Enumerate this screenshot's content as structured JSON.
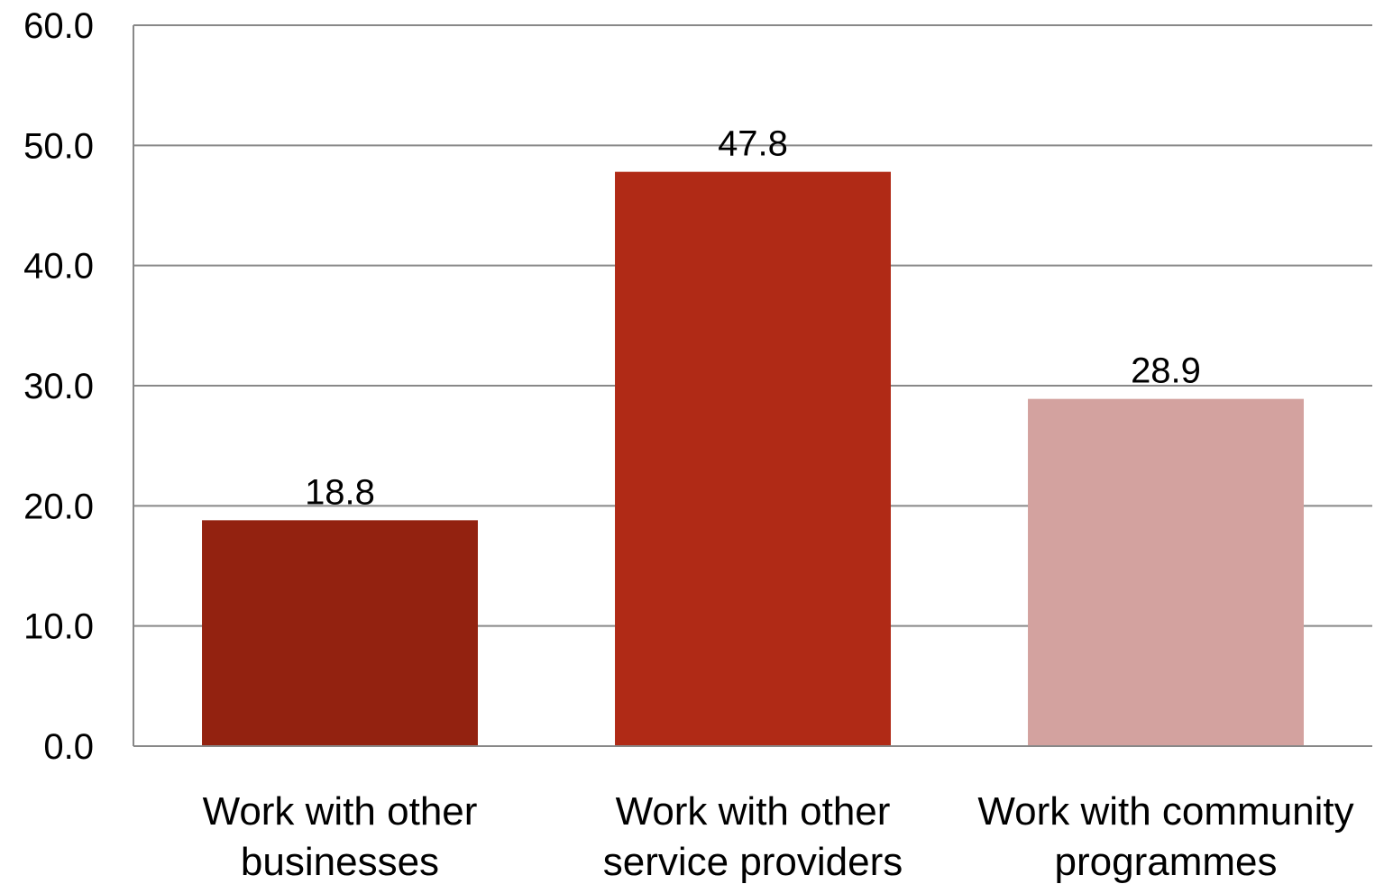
{
  "chart_data": {
    "type": "bar",
    "title": "",
    "xlabel": "",
    "ylabel": "",
    "categories": [
      [
        "Work with other",
        "businesses"
      ],
      [
        "Work with other",
        "service providers"
      ],
      [
        "Work with community",
        "programmes"
      ]
    ],
    "values": [
      18.8,
      47.8,
      28.9
    ],
    "value_labels": [
      "18.8",
      "47.8",
      "28.9"
    ],
    "colors": [
      "#932210",
      "#b02a16",
      "#d3a29f"
    ],
    "ylim": [
      0,
      60
    ],
    "yticks": [
      0,
      10,
      20,
      30,
      40,
      50,
      60
    ],
    "ytick_labels": [
      "0.0",
      "10.0",
      "20.0",
      "30.0",
      "40.0",
      "50.0",
      "60.0"
    ],
    "grid": true,
    "legend": "none",
    "gridline_color": "#888888"
  }
}
